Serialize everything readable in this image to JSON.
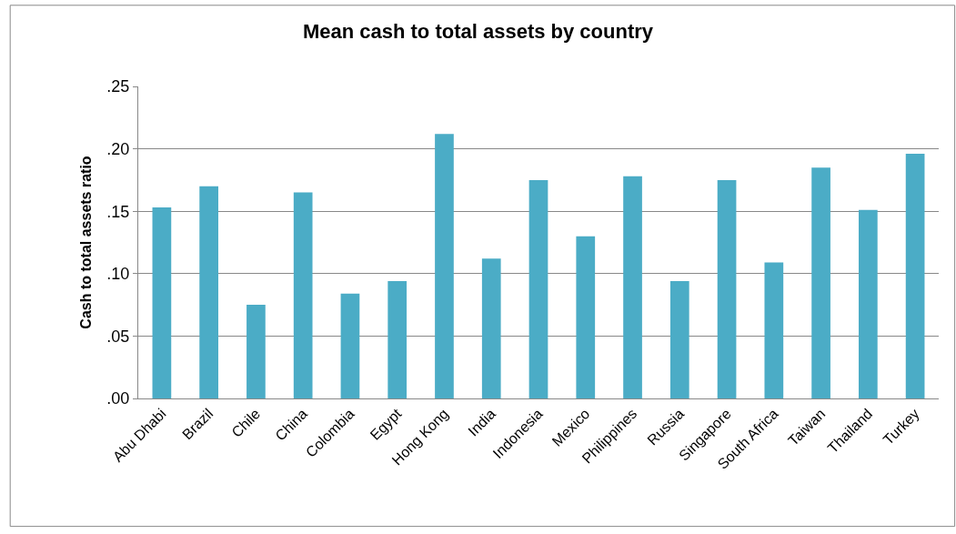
{
  "chart_data": {
    "type": "bar",
    "title": "Mean cash to total assets by country",
    "ylabel": "Cash to total assets ratio",
    "categories": [
      "Abu Dhabi",
      "Brazil",
      "Chile",
      "China",
      "Colombia",
      "Egypt",
      "Hong Kong",
      "India",
      "Indonesia",
      "Mexico",
      "Philippines",
      "Russia",
      "Singapore",
      "South Africa",
      "Taiwan",
      "Thailand",
      "Turkey"
    ],
    "values": [
      0.153,
      0.17,
      0.075,
      0.165,
      0.084,
      0.094,
      0.212,
      0.112,
      0.175,
      0.13,
      0.178,
      0.094,
      0.175,
      0.109,
      0.185,
      0.151,
      0.196
    ],
    "color": "#4bacc6",
    "ylim": [
      0,
      0.25
    ],
    "yticks": [
      {
        "value": 0,
        "label": ".00"
      },
      {
        "value": 0.05,
        "label": ".05"
      },
      {
        "value": 0.1,
        "label": ".10"
      },
      {
        "value": 0.15,
        "label": ".15"
      },
      {
        "value": 0.2,
        "label": ".20"
      },
      {
        "value": 0.25,
        "label": ".25"
      }
    ],
    "grid": "y"
  }
}
